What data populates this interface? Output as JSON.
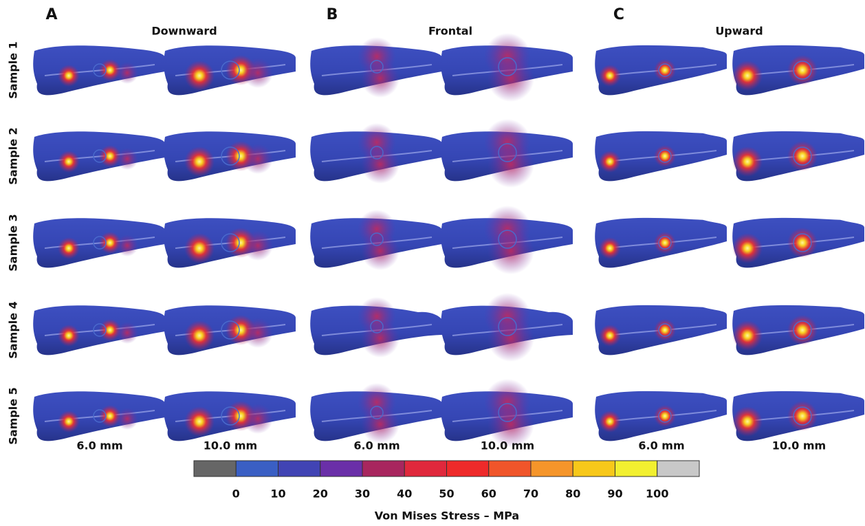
{
  "panels": [
    {
      "letter": "A",
      "title": "Downward"
    },
    {
      "letter": "B",
      "title": "Frontal"
    },
    {
      "letter": "C",
      "title": "Upward"
    }
  ],
  "row_labels": [
    "Sample 1",
    "Sample 2",
    "Sample 3",
    "Sample 4",
    "Sample 5"
  ],
  "column_labels": [
    "6.0 mm",
    "10.0 mm",
    "6.0 mm",
    "10.0 mm",
    "6.0 mm",
    "10.0 mm"
  ],
  "colorbar": {
    "ticks": [
      0,
      10,
      20,
      30,
      40,
      50,
      60,
      70,
      80,
      90,
      100
    ],
    "label": "Von Mises Stress – MPa"
  }
}
